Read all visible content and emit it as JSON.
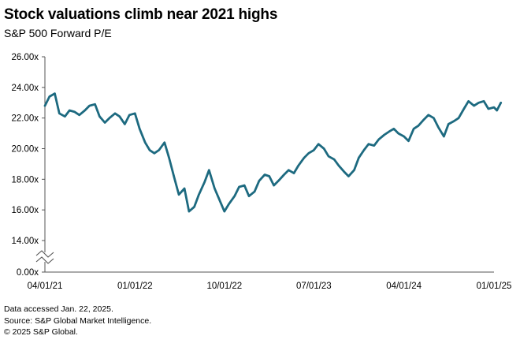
{
  "header": {
    "title": "Stock valuations climb near 2021 highs",
    "subtitle": "S&P 500 Forward P/E"
  },
  "footer": {
    "lines": [
      "Data accessed Jan. 22, 2025.",
      "Source: S&P Global Market Intelligence.",
      "© 2025 S&P Global."
    ]
  },
  "chart_data": {
    "type": "line",
    "title": "Stock valuations climb near 2021 highs",
    "subtitle": "S&P 500 Forward P/E",
    "xlabel": "",
    "ylabel": "",
    "y_axis_break": true,
    "y_ticks": [
      {
        "value": 26,
        "label": "26.00x"
      },
      {
        "value": 24,
        "label": "24.00x"
      },
      {
        "value": 22,
        "label": "22.00x"
      },
      {
        "value": 20,
        "label": "20.00x"
      },
      {
        "value": 18,
        "label": "18.00x"
      },
      {
        "value": 16,
        "label": "16.00x"
      },
      {
        "value": 14,
        "label": "14.00x"
      },
      {
        "value": 0,
        "label": "0.00x"
      }
    ],
    "x_ticks": [
      {
        "value": "2021-04-01",
        "label": "04/01/21"
      },
      {
        "value": "2022-01-01",
        "label": "01/01/22"
      },
      {
        "value": "2022-10-01",
        "label": "10/01/22"
      },
      {
        "value": "2023-07-01",
        "label": "07/01/23"
      },
      {
        "value": "2024-04-01",
        "label": "04/01/24"
      },
      {
        "value": "2025-01-01",
        "label": "01/01/25"
      }
    ],
    "grid": false,
    "line_color": "#1d6a80",
    "series": [
      {
        "values": [
          [
            "2021-04-01",
            22.8
          ],
          [
            "2021-04-15",
            23.4
          ],
          [
            "2021-05-01",
            23.6
          ],
          [
            "2021-05-15",
            22.3
          ],
          [
            "2021-06-01",
            22.1
          ],
          [
            "2021-06-15",
            22.5
          ],
          [
            "2021-07-01",
            22.4
          ],
          [
            "2021-07-15",
            22.2
          ],
          [
            "2021-08-01",
            22.5
          ],
          [
            "2021-08-15",
            22.8
          ],
          [
            "2021-09-01",
            22.9
          ],
          [
            "2021-09-15",
            22.1
          ],
          [
            "2021-10-01",
            21.7
          ],
          [
            "2021-10-15",
            22.0
          ],
          [
            "2021-11-01",
            22.3
          ],
          [
            "2021-11-15",
            22.1
          ],
          [
            "2021-12-01",
            21.6
          ],
          [
            "2021-12-15",
            22.2
          ],
          [
            "2022-01-01",
            22.3
          ],
          [
            "2022-01-15",
            21.3
          ],
          [
            "2022-02-01",
            20.4
          ],
          [
            "2022-02-15",
            19.9
          ],
          [
            "2022-03-01",
            19.7
          ],
          [
            "2022-03-15",
            19.9
          ],
          [
            "2022-04-01",
            20.4
          ],
          [
            "2022-04-15",
            19.4
          ],
          [
            "2022-05-01",
            18.1
          ],
          [
            "2022-05-15",
            17.0
          ],
          [
            "2022-06-01",
            17.4
          ],
          [
            "2022-06-15",
            15.9
          ],
          [
            "2022-07-01",
            16.2
          ],
          [
            "2022-07-15",
            17.0
          ],
          [
            "2022-08-01",
            17.8
          ],
          [
            "2022-08-15",
            18.6
          ],
          [
            "2022-09-01",
            17.4
          ],
          [
            "2022-09-15",
            16.7
          ],
          [
            "2022-10-01",
            15.9
          ],
          [
            "2022-10-15",
            16.4
          ],
          [
            "2022-11-01",
            16.9
          ],
          [
            "2022-11-15",
            17.5
          ],
          [
            "2022-12-01",
            17.6
          ],
          [
            "2022-12-15",
            16.9
          ],
          [
            "2023-01-01",
            17.2
          ],
          [
            "2023-01-15",
            17.9
          ],
          [
            "2023-02-01",
            18.3
          ],
          [
            "2023-02-15",
            18.2
          ],
          [
            "2023-03-01",
            17.6
          ],
          [
            "2023-03-15",
            17.9
          ],
          [
            "2023-04-01",
            18.3
          ],
          [
            "2023-04-15",
            18.6
          ],
          [
            "2023-05-01",
            18.4
          ],
          [
            "2023-05-15",
            18.9
          ],
          [
            "2023-06-01",
            19.4
          ],
          [
            "2023-06-15",
            19.7
          ],
          [
            "2023-07-01",
            19.9
          ],
          [
            "2023-07-15",
            20.3
          ],
          [
            "2023-08-01",
            20.0
          ],
          [
            "2023-08-15",
            19.5
          ],
          [
            "2023-09-01",
            19.3
          ],
          [
            "2023-09-15",
            18.9
          ],
          [
            "2023-10-01",
            18.5
          ],
          [
            "2023-10-15",
            18.2
          ],
          [
            "2023-11-01",
            18.6
          ],
          [
            "2023-11-15",
            19.4
          ],
          [
            "2023-12-01",
            19.9
          ],
          [
            "2023-12-15",
            20.3
          ],
          [
            "2024-01-01",
            20.2
          ],
          [
            "2024-01-15",
            20.6
          ],
          [
            "2024-02-01",
            20.9
          ],
          [
            "2024-02-15",
            21.1
          ],
          [
            "2024-03-01",
            21.3
          ],
          [
            "2024-03-15",
            21.0
          ],
          [
            "2024-04-01",
            20.8
          ],
          [
            "2024-04-15",
            20.5
          ],
          [
            "2024-05-01",
            21.3
          ],
          [
            "2024-05-15",
            21.5
          ],
          [
            "2024-06-01",
            21.9
          ],
          [
            "2024-06-15",
            22.2
          ],
          [
            "2024-07-01",
            22.0
          ],
          [
            "2024-07-15",
            21.4
          ],
          [
            "2024-08-01",
            20.8
          ],
          [
            "2024-08-15",
            21.6
          ],
          [
            "2024-09-01",
            21.8
          ],
          [
            "2024-09-15",
            22.0
          ],
          [
            "2024-10-01",
            22.6
          ],
          [
            "2024-10-15",
            23.1
          ],
          [
            "2024-11-01",
            22.8
          ],
          [
            "2024-11-15",
            23.0
          ],
          [
            "2024-12-01",
            23.1
          ],
          [
            "2024-12-15",
            22.6
          ],
          [
            "2025-01-01",
            22.7
          ],
          [
            "2025-01-10",
            22.5
          ],
          [
            "2025-01-22",
            23.0
          ]
        ]
      }
    ]
  }
}
